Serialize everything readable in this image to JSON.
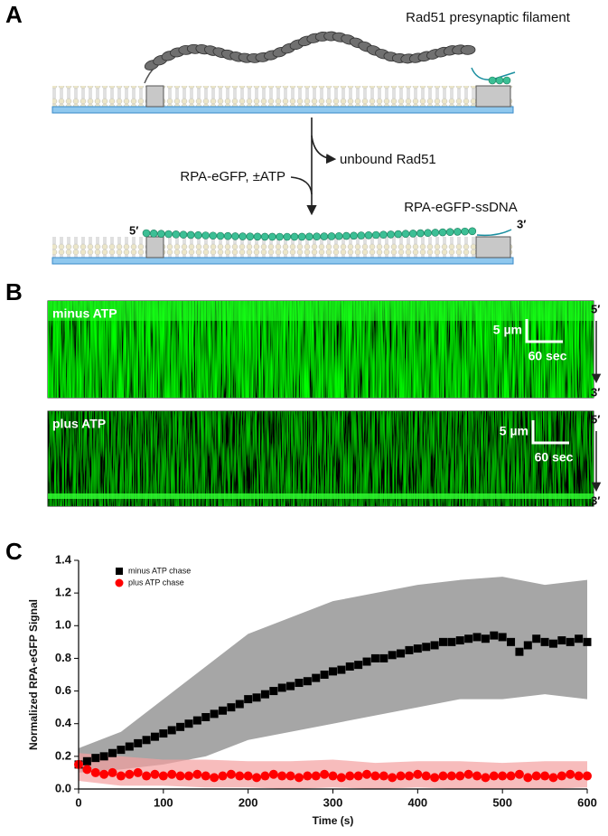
{
  "panels": {
    "a": "A",
    "b": "B",
    "c": "C"
  },
  "diagram": {
    "filament_label": "Rad51 presynaptic filament",
    "unbound_label": "unbound Rad51",
    "chase_label": "RPA-eGFP, ±ATP",
    "product_label": "RPA-eGFP-ssDNA",
    "five_prime": "5′",
    "three_prime": "3′"
  },
  "kymographs": [
    {
      "label": "minus ATP",
      "scale_length": "5 µm",
      "scale_time": "60 sec",
      "top_end": "5′",
      "bottom_end": "3′"
    },
    {
      "label": "plus ATP",
      "scale_length": "5 µm",
      "scale_time": "60 sec",
      "top_end": "5′",
      "bottom_end": "3′"
    }
  ],
  "chart_data": {
    "type": "scatter",
    "xlabel": "Time (s)",
    "ylabel": "Normalized RPA-eGFP Signal",
    "xlim": [
      0,
      600
    ],
    "xticks": [
      0,
      100,
      200,
      300,
      400,
      500,
      600
    ],
    "ylim": [
      0,
      1.4
    ],
    "yticks": [
      {
        "value": 0,
        "label": "0.0"
      },
      0.2,
      0.4,
      0.6,
      0.8,
      {
        "value": 1,
        "label": "1.0"
      },
      1.2,
      1.4
    ],
    "legend": "upper left",
    "x": [
      0,
      10,
      20,
      30,
      40,
      50,
      60,
      70,
      80,
      90,
      100,
      110,
      120,
      130,
      140,
      150,
      160,
      170,
      180,
      190,
      200,
      210,
      220,
      230,
      240,
      250,
      260,
      270,
      280,
      290,
      300,
      310,
      320,
      330,
      340,
      350,
      360,
      370,
      380,
      390,
      400,
      410,
      420,
      430,
      440,
      450,
      460,
      470,
      480,
      490,
      500,
      510,
      520,
      530,
      540,
      550,
      560,
      570,
      580,
      590,
      600
    ],
    "series": [
      {
        "name": "minus ATP chase",
        "color": "#000000",
        "marker": "square",
        "values": [
          0.15,
          0.17,
          0.19,
          0.2,
          0.22,
          0.24,
          0.26,
          0.28,
          0.3,
          0.32,
          0.34,
          0.36,
          0.38,
          0.4,
          0.42,
          0.44,
          0.46,
          0.48,
          0.5,
          0.52,
          0.55,
          0.56,
          0.58,
          0.6,
          0.62,
          0.63,
          0.65,
          0.66,
          0.68,
          0.7,
          0.72,
          0.73,
          0.75,
          0.76,
          0.78,
          0.8,
          0.8,
          0.82,
          0.83,
          0.85,
          0.86,
          0.87,
          0.88,
          0.9,
          0.9,
          0.91,
          0.92,
          0.93,
          0.92,
          0.94,
          0.93,
          0.9,
          0.84,
          0.88,
          0.92,
          0.9,
          0.89,
          0.91,
          0.9,
          0.92,
          0.9
        ],
        "band": {
          "color": "#a6a6a6",
          "x": [
            0,
            50,
            100,
            150,
            200,
            250,
            300,
            350,
            400,
            450,
            500,
            550,
            600
          ],
          "upper": [
            0.25,
            0.35,
            0.55,
            0.75,
            0.95,
            1.05,
            1.15,
            1.2,
            1.25,
            1.28,
            1.3,
            1.25,
            1.28
          ],
          "lower": [
            0.1,
            0.12,
            0.15,
            0.2,
            0.3,
            0.35,
            0.4,
            0.45,
            0.5,
            0.55,
            0.55,
            0.58,
            0.55
          ]
        }
      },
      {
        "name": "plus ATP chase",
        "color": "#ff0000",
        "marker": "circle",
        "values": [
          0.15,
          0.12,
          0.1,
          0.09,
          0.1,
          0.08,
          0.09,
          0.1,
          0.08,
          0.09,
          0.08,
          0.09,
          0.08,
          0.08,
          0.09,
          0.08,
          0.07,
          0.08,
          0.09,
          0.08,
          0.08,
          0.07,
          0.08,
          0.09,
          0.08,
          0.08,
          0.07,
          0.08,
          0.08,
          0.09,
          0.08,
          0.07,
          0.08,
          0.08,
          0.09,
          0.08,
          0.08,
          0.07,
          0.08,
          0.08,
          0.09,
          0.08,
          0.07,
          0.08,
          0.08,
          0.08,
          0.09,
          0.08,
          0.07,
          0.08,
          0.08,
          0.08,
          0.09,
          0.07,
          0.08,
          0.08,
          0.07,
          0.08,
          0.09,
          0.08,
          0.08
        ],
        "band": {
          "color": "#f4a0a0",
          "x": [
            0,
            50,
            100,
            150,
            200,
            250,
            300,
            350,
            400,
            450,
            500,
            550,
            600
          ],
          "upper": [
            0.22,
            0.2,
            0.18,
            0.18,
            0.17,
            0.17,
            0.18,
            0.16,
            0.17,
            0.17,
            0.16,
            0.17,
            0.17
          ],
          "lower": [
            0.05,
            0.02,
            0.02,
            0.01,
            0.01,
            0.0,
            0.01,
            0.0,
            0.01,
            0.0,
            0.0,
            0.0,
            0.01
          ]
        }
      }
    ]
  }
}
